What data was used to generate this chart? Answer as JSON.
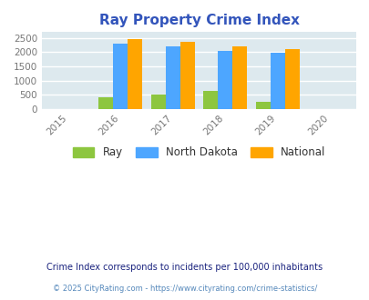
{
  "title": "Ray Property Crime Index",
  "years": [
    2016,
    2017,
    2018,
    2019
  ],
  "ray": [
    400,
    500,
    625,
    250
  ],
  "north_dakota": [
    2285,
    2200,
    2040,
    1985
  ],
  "national": [
    2450,
    2355,
    2200,
    2100
  ],
  "xlim": [
    2014.5,
    2020.5
  ],
  "ylim": [
    0,
    2700
  ],
  "yticks": [
    0,
    500,
    1000,
    1500,
    2000,
    2500
  ],
  "xticks": [
    2015,
    2016,
    2017,
    2018,
    2019,
    2020
  ],
  "bar_width": 0.28,
  "color_ray": "#8DC63F",
  "color_nd": "#4DA6FF",
  "color_national": "#FFA500",
  "bg_color": "#DDE9EE",
  "grid_color": "#FFFFFF",
  "footnote1": "Crime Index corresponds to incidents per 100,000 inhabitants",
  "footnote2": "© 2025 CityRating.com - https://www.cityrating.com/crime-statistics/",
  "title_color": "#3355BB",
  "footnote1_color": "#1A237E",
  "footnote2_color": "#5588BB"
}
